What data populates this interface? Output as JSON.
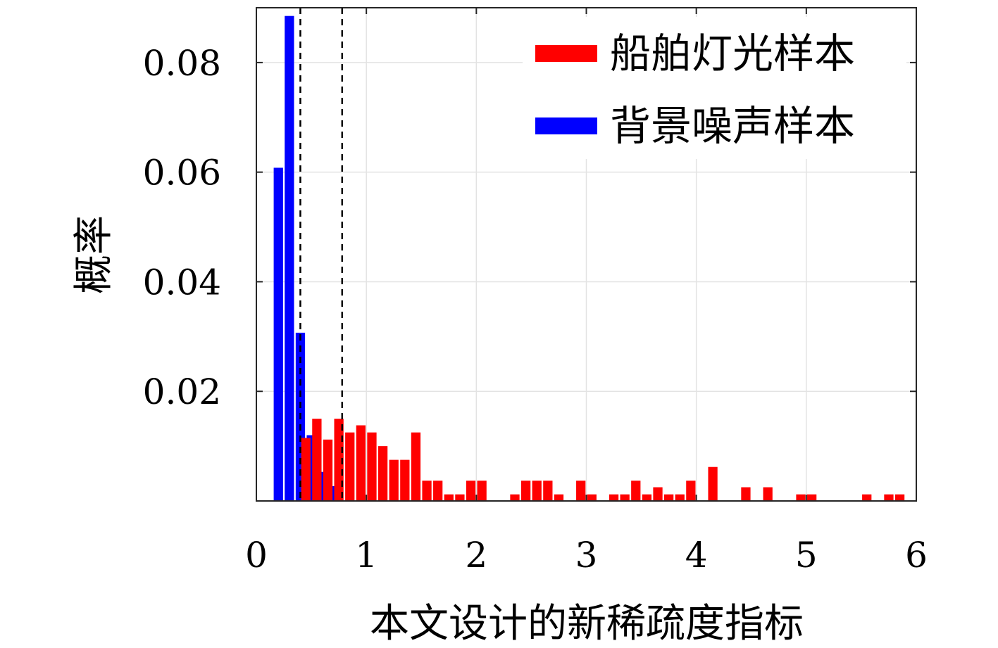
{
  "chart_data": {
    "type": "bar",
    "xlabel": "本文设计的新稀疏度指标",
    "ylabel": "概率",
    "xlim": [
      0,
      6
    ],
    "ylim": [
      0,
      0.09
    ],
    "x_ticks": [
      0,
      1,
      2,
      3,
      4,
      5,
      6
    ],
    "x_tick_labels": [
      "0",
      "1",
      "2",
      "3",
      "4",
      "5",
      "6"
    ],
    "y_ticks": [
      0.02,
      0.04,
      0.06,
      0.08
    ],
    "y_tick_labels": [
      "0.02",
      "0.04",
      "0.06",
      "0.08"
    ],
    "grid": true,
    "legend_position": "top-right",
    "bin_width": 0.1,
    "bar_width": 0.085,
    "reference_lines": [
      0.4,
      0.78
    ],
    "series": [
      {
        "name": "船舶灯光样本",
        "color": "#ff0000",
        "bins": [
          {
            "x": 0.45,
            "y": 0.0115
          },
          {
            "x": 0.55,
            "y": 0.015
          },
          {
            "x": 0.65,
            "y": 0.0112
          },
          {
            "x": 0.75,
            "y": 0.015
          },
          {
            "x": 0.85,
            "y": 0.0125
          },
          {
            "x": 0.95,
            "y": 0.0138
          },
          {
            "x": 1.05,
            "y": 0.0125
          },
          {
            "x": 1.15,
            "y": 0.01
          },
          {
            "x": 1.25,
            "y": 0.0075
          },
          {
            "x": 1.35,
            "y": 0.0075
          },
          {
            "x": 1.45,
            "y": 0.0125
          },
          {
            "x": 1.55,
            "y": 0.0037
          },
          {
            "x": 1.65,
            "y": 0.0037
          },
          {
            "x": 1.75,
            "y": 0.0012
          },
          {
            "x": 1.85,
            "y": 0.0012
          },
          {
            "x": 1.95,
            "y": 0.0037
          },
          {
            "x": 2.05,
            "y": 0.0037
          },
          {
            "x": 2.35,
            "y": 0.0012
          },
          {
            "x": 2.45,
            "y": 0.0037
          },
          {
            "x": 2.55,
            "y": 0.0037
          },
          {
            "x": 2.65,
            "y": 0.0037
          },
          {
            "x": 2.75,
            "y": 0.0012
          },
          {
            "x": 2.95,
            "y": 0.0037
          },
          {
            "x": 3.05,
            "y": 0.0012
          },
          {
            "x": 3.25,
            "y": 0.0012
          },
          {
            "x": 3.35,
            "y": 0.0012
          },
          {
            "x": 3.45,
            "y": 0.0037
          },
          {
            "x": 3.55,
            "y": 0.0012
          },
          {
            "x": 3.65,
            "y": 0.0025
          },
          {
            "x": 3.75,
            "y": 0.0012
          },
          {
            "x": 3.85,
            "y": 0.0012
          },
          {
            "x": 3.95,
            "y": 0.0037
          },
          {
            "x": 4.15,
            "y": 0.0062
          },
          {
            "x": 4.45,
            "y": 0.0025
          },
          {
            "x": 4.65,
            "y": 0.0025
          },
          {
            "x": 4.95,
            "y": 0.0012
          },
          {
            "x": 5.05,
            "y": 0.0012
          },
          {
            "x": 5.55,
            "y": 0.0012
          },
          {
            "x": 5.75,
            "y": 0.0012
          },
          {
            "x": 5.85,
            "y": 0.0012
          }
        ]
      },
      {
        "name": "背景噪声样本",
        "color": "#0000ff",
        "bins": [
          {
            "x": 0.2,
            "y": 0.0608
          },
          {
            "x": 0.3,
            "y": 0.0885
          },
          {
            "x": 0.4,
            "y": 0.0307
          },
          {
            "x": 0.5,
            "y": 0.012
          },
          {
            "x": 0.6,
            "y": 0.0053
          },
          {
            "x": 0.7,
            "y": 0.0027
          }
        ]
      }
    ]
  }
}
